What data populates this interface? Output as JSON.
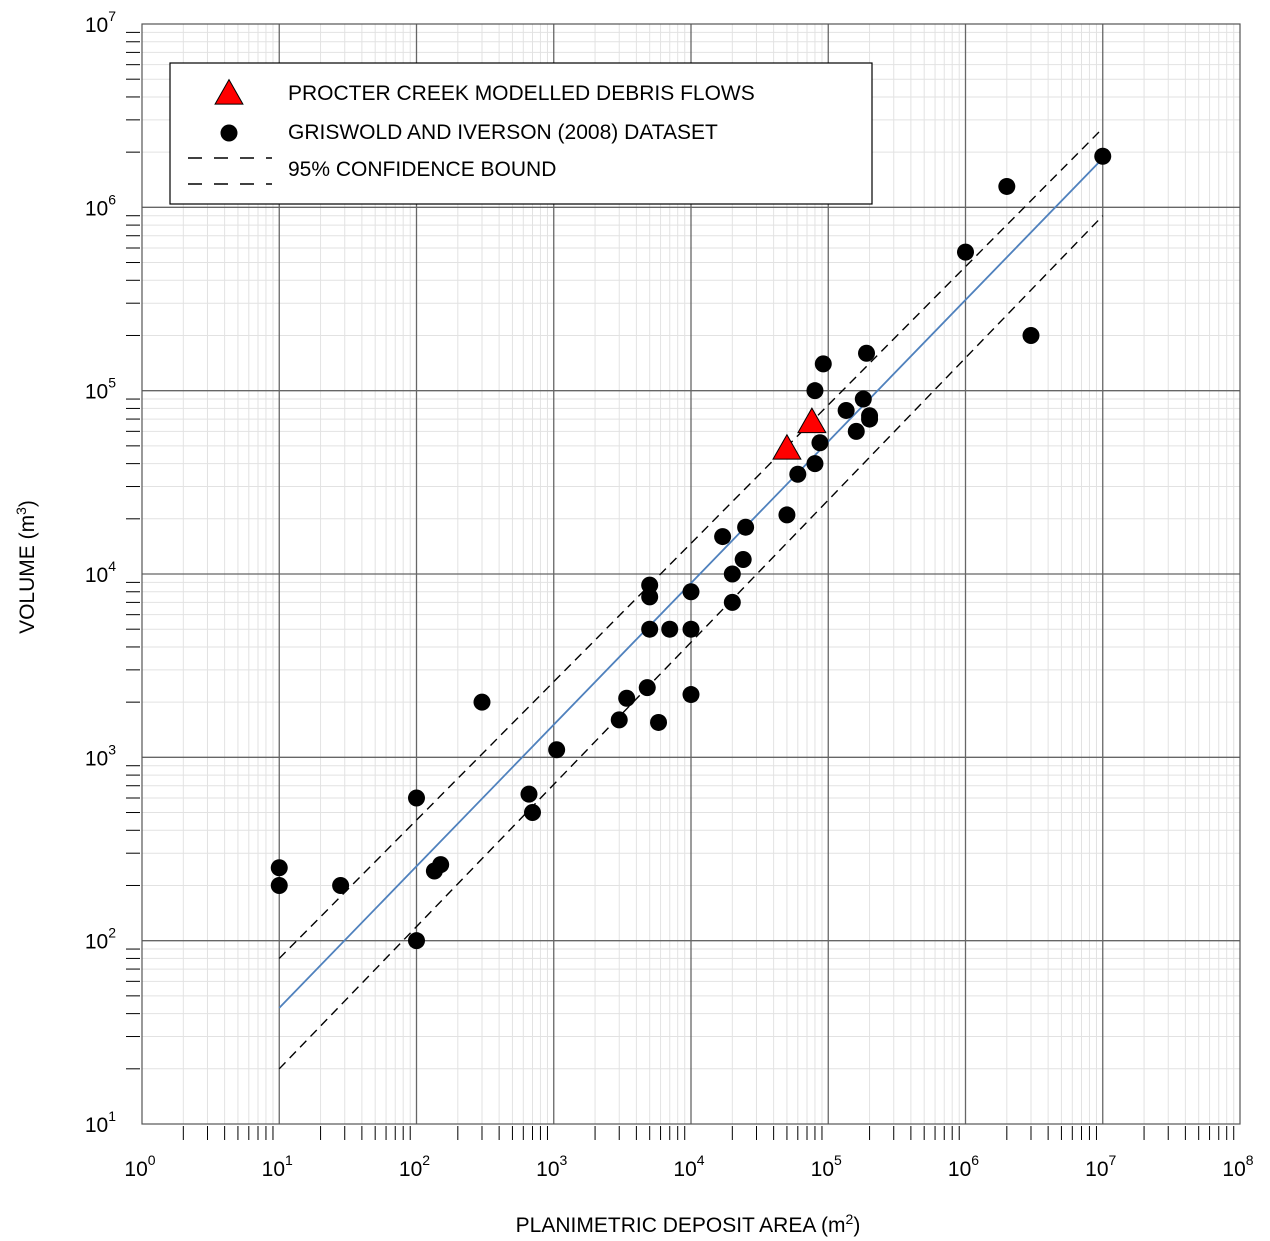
{
  "chart_data": {
    "type": "scatter",
    "xscale": "log",
    "yscale": "log",
    "xlim": [
      1,
      100000000
    ],
    "ylim": [
      10,
      10000000
    ],
    "xlabel": "PLANIMETRIC DEPOSIT AREA (m",
    "xlabel_sup": "2",
    "xlabel_end": ")",
    "ylabel": "VOLUME (m",
    "ylabel_sup": "3",
    "ylabel_end": ")",
    "x_ticks": [
      {
        "base": "10",
        "exp": "0"
      },
      {
        "base": "10",
        "exp": "1"
      },
      {
        "base": "10",
        "exp": "2"
      },
      {
        "base": "10",
        "exp": "3"
      },
      {
        "base": "10",
        "exp": "4"
      },
      {
        "base": "10",
        "exp": "5"
      },
      {
        "base": "10",
        "exp": "6"
      },
      {
        "base": "10",
        "exp": "7"
      },
      {
        "base": "10",
        "exp": "8"
      }
    ],
    "y_ticks": [
      {
        "base": "10",
        "exp": "1"
      },
      {
        "base": "10",
        "exp": "2"
      },
      {
        "base": "10",
        "exp": "3"
      },
      {
        "base": "10",
        "exp": "4"
      },
      {
        "base": "10",
        "exp": "5"
      },
      {
        "base": "10",
        "exp": "6"
      },
      {
        "base": "10",
        "exp": "7"
      }
    ],
    "grid": true,
    "legend_position": "top-left",
    "legend": [
      {
        "label": "PROCTER CREEK MODELLED DEBRIS FLOWS",
        "marker": "triangle",
        "color": "#ff0000"
      },
      {
        "label": "GRISWOLD AND IVERSON (2008) DATASET",
        "marker": "circle",
        "color": "#000000"
      },
      {
        "label": "95% CONFIDENCE BOUND",
        "marker": "dashed-line",
        "color": "#000000"
      }
    ],
    "series": [
      {
        "name": "PROCTER CREEK MODELLED DEBRIS FLOWS",
        "marker": "triangle",
        "color": "#ff0000",
        "points": [
          [
            50000,
            48000
          ],
          [
            76000,
            67000
          ]
        ]
      },
      {
        "name": "GRISWOLD AND IVERSON (2008) DATASET",
        "marker": "circle",
        "color": "#000000",
        "points": [
          [
            10,
            250
          ],
          [
            10,
            200
          ],
          [
            28,
            200
          ],
          [
            100,
            600
          ],
          [
            100,
            100
          ],
          [
            135,
            240
          ],
          [
            150,
            260
          ],
          [
            300,
            2000
          ],
          [
            660,
            630
          ],
          [
            700,
            500
          ],
          [
            1050,
            1100
          ],
          [
            3000,
            1600
          ],
          [
            3400,
            2100
          ],
          [
            4800,
            2400
          ],
          [
            5000,
            8700
          ],
          [
            5000,
            7500
          ],
          [
            5000,
            5000
          ],
          [
            5800,
            1550
          ],
          [
            7000,
            5000
          ],
          [
            10000,
            8000
          ],
          [
            10000,
            5000
          ],
          [
            10000,
            2200
          ],
          [
            17000,
            16000
          ],
          [
            20000,
            10000
          ],
          [
            20000,
            7000
          ],
          [
            24000,
            12000
          ],
          [
            25000,
            18000
          ],
          [
            50000,
            21000
          ],
          [
            60000,
            35000
          ],
          [
            80000,
            100000
          ],
          [
            80000,
            40000
          ],
          [
            87000,
            52000
          ],
          [
            92000,
            140000
          ],
          [
            135000,
            78000
          ],
          [
            160000,
            60000
          ],
          [
            180000,
            90000
          ],
          [
            190000,
            160000
          ],
          [
            200000,
            73000
          ],
          [
            200000,
            70000
          ],
          [
            1000000,
            570000
          ],
          [
            2000000,
            1300000
          ],
          [
            3000000,
            200000
          ],
          [
            10000000,
            1900000
          ]
        ]
      }
    ],
    "fit_line": {
      "color": "#4f81bd",
      "points": [
        [
          10,
          43
        ],
        [
          10000000,
          1850000
        ]
      ]
    },
    "confidence_bounds": [
      {
        "points": [
          [
            10,
            80
          ],
          [
            10000000,
            2700000
          ]
        ]
      },
      {
        "points": [
          [
            10,
            20
          ],
          [
            10000000,
            900000
          ]
        ]
      }
    ]
  }
}
